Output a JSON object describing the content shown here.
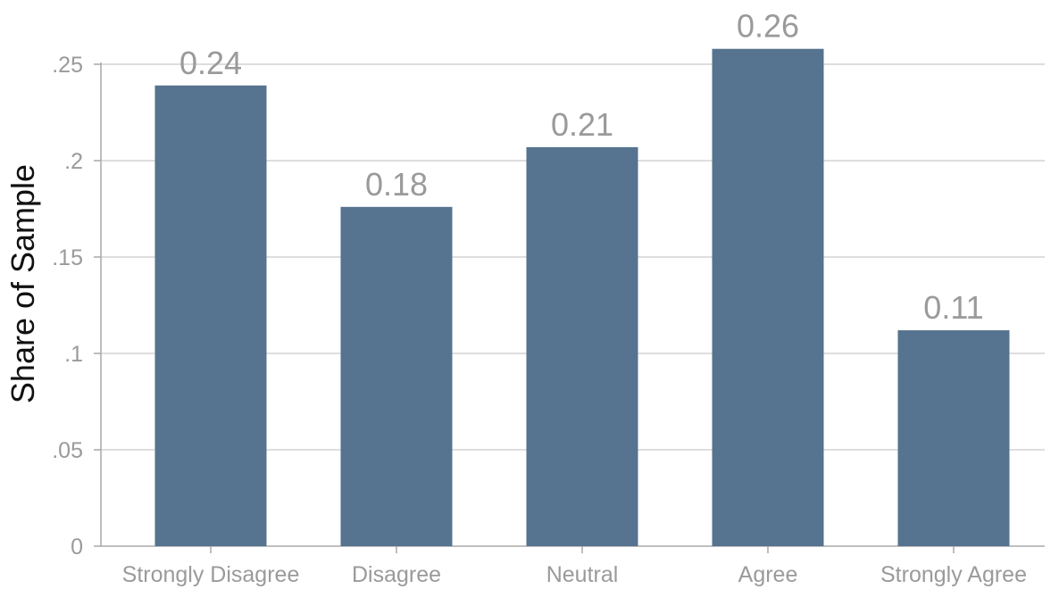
{
  "chart_data": {
    "type": "bar",
    "categories": [
      "Strongly Disagree",
      "Disagree",
      "Neutral",
      "Agree",
      "Strongly Agree"
    ],
    "values": [
      0.239,
      0.176,
      0.207,
      0.258,
      0.112
    ],
    "data_labels": [
      "0.24",
      "0.18",
      "0.21",
      "0.26",
      "0.11"
    ],
    "title": "",
    "xlabel": "",
    "ylabel": "Share of Sample",
    "ylim": [
      0,
      0.25
    ],
    "yticks": [
      0,
      0.05,
      0.1,
      0.15,
      0.2,
      0.25
    ],
    "ytick_labels": [
      "0",
      ".05",
      ".1",
      ".15",
      ".2",
      ".25"
    ],
    "grid": true,
    "legend": "none",
    "bar_color": "#56738f"
  }
}
